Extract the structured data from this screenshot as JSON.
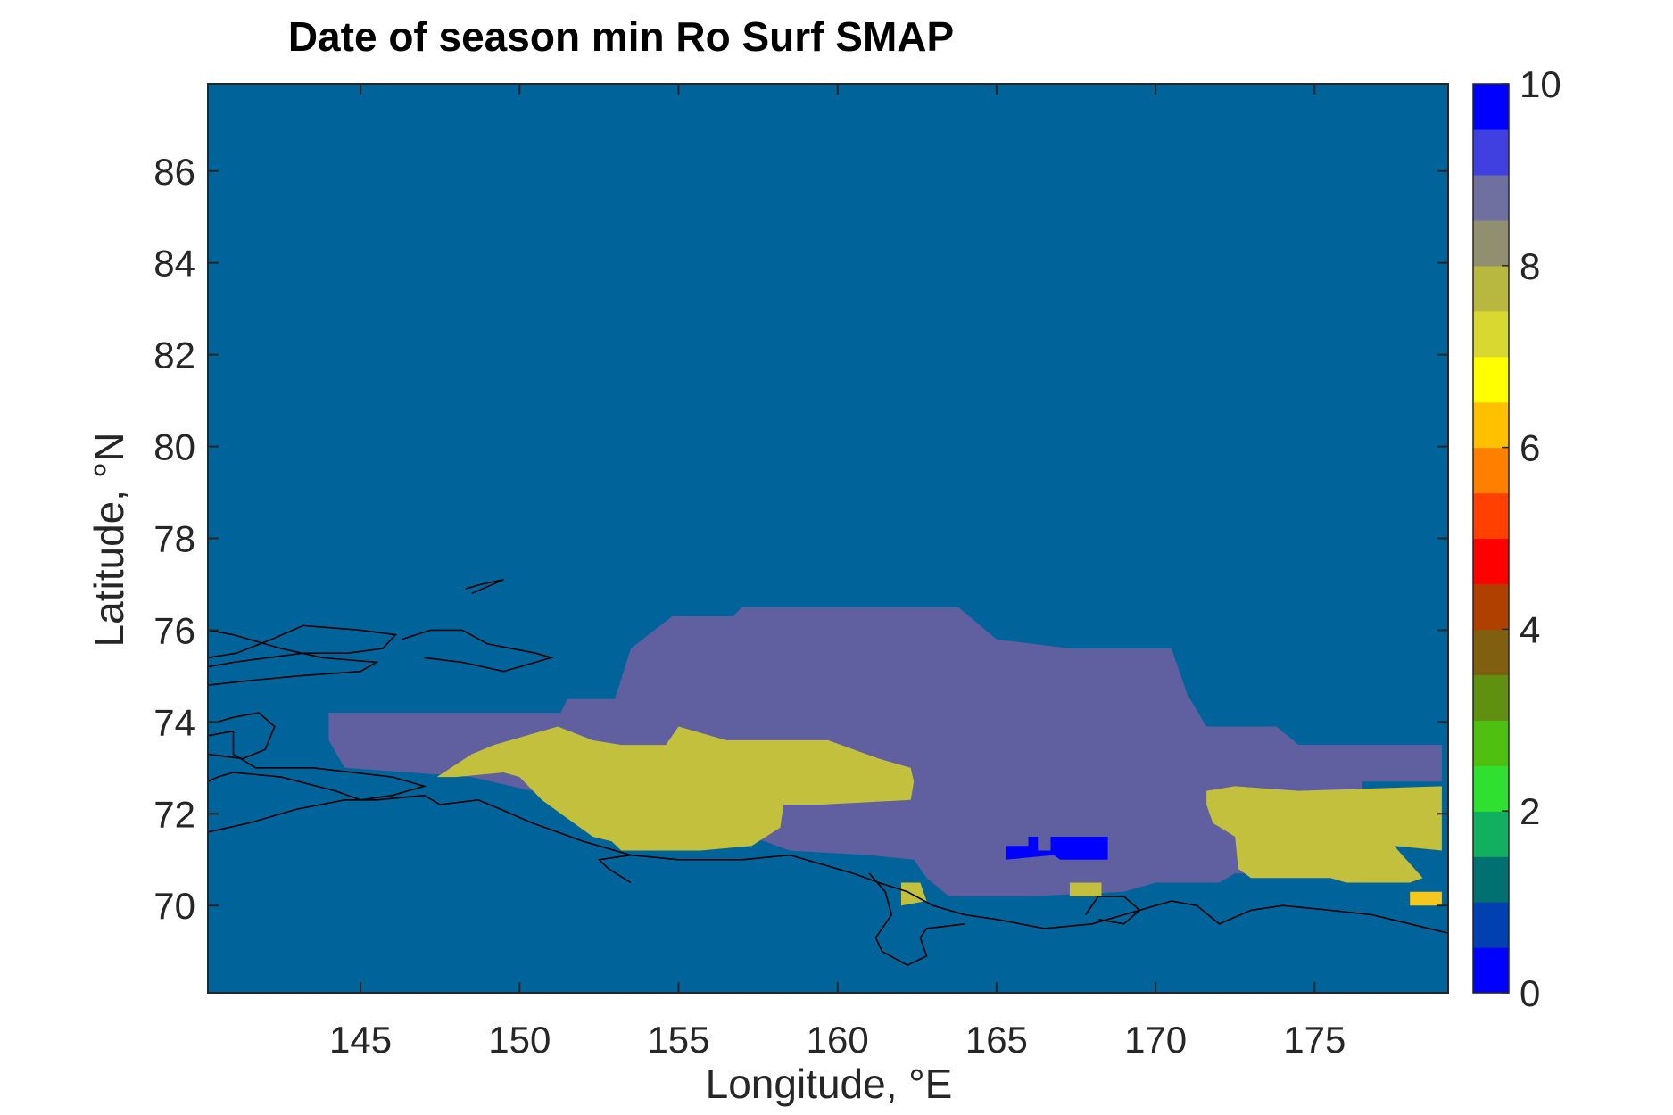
{
  "chart_data": {
    "type": "heatmap",
    "title": "Date of season min Ro Surf SMAP",
    "xlabel": "Longitude, °E",
    "ylabel": "Latitude, °N",
    "xlim": [
      140.2,
      179.2
    ],
    "ylim": [
      68.1,
      87.9
    ],
    "xticks": [
      145,
      150,
      155,
      160,
      165,
      170,
      175
    ],
    "yticks": [
      70,
      72,
      74,
      76,
      78,
      80,
      82,
      84,
      86
    ],
    "grid": false,
    "background_value": 1,
    "background_color": "#00649a",
    "colorbar": {
      "range": [
        0,
        10
      ],
      "ticks": [
        0,
        2,
        4,
        6,
        8,
        10
      ],
      "colors": [
        "#0000ff",
        "#0040b0",
        "#007070",
        "#10b060",
        "#30e030",
        "#50c010",
        "#609010",
        "#806010",
        "#b04000",
        "#ff0000",
        "#ff4000",
        "#ff8000",
        "#ffc000",
        "#ffff00",
        "#d8d830",
        "#b8b840",
        "#909070",
        "#7070a0",
        "#4040e0",
        "#0000ff"
      ]
    },
    "regions": [
      {
        "name": "",
        "value": 9,
        "color": "#605fa0",
        "polygon": [
          [
            144,
            74.2
          ],
          [
            151.3,
            74.2
          ],
          [
            151.5,
            74.5
          ],
          [
            153,
            74.5
          ],
          [
            153.5,
            75.6
          ],
          [
            154.8,
            76.3
          ],
          [
            156.7,
            76.3
          ],
          [
            157,
            76.5
          ],
          [
            163.8,
            76.5
          ],
          [
            165,
            75.8
          ],
          [
            167.3,
            75.6
          ],
          [
            170.5,
            75.6
          ],
          [
            171,
            74.6
          ],
          [
            171.6,
            73.9
          ],
          [
            173.8,
            73.9
          ],
          [
            174.5,
            73.5
          ],
          [
            179,
            73.5
          ],
          [
            179,
            72.7
          ],
          [
            176.5,
            72.7
          ],
          [
            176.5,
            72
          ],
          [
            176,
            71.6
          ],
          [
            176.2,
            70.8
          ],
          [
            175,
            70.7
          ],
          [
            172.5,
            70.7
          ],
          [
            172,
            70.5
          ],
          [
            170,
            70.5
          ],
          [
            169,
            70.3
          ],
          [
            166,
            70.2
          ],
          [
            163.5,
            70.2
          ],
          [
            162.8,
            70.6
          ],
          [
            162.4,
            71
          ],
          [
            161,
            71.1
          ],
          [
            158.5,
            71.2
          ],
          [
            157.3,
            71.5
          ],
          [
            152.8,
            71.5
          ],
          [
            152.4,
            72
          ],
          [
            151,
            72.4
          ],
          [
            148.5,
            72.8
          ],
          [
            144.5,
            73
          ],
          [
            144,
            73.6
          ]
        ]
      },
      {
        "name": "",
        "value": 8,
        "color": "#c2c03c",
        "polygon": [
          [
            147.4,
            72.8
          ],
          [
            148.5,
            73.3
          ],
          [
            149.2,
            73.5
          ],
          [
            151.2,
            73.9
          ],
          [
            152.3,
            73.6
          ],
          [
            153.2,
            73.5
          ],
          [
            154.6,
            73.5
          ],
          [
            155,
            73.9
          ],
          [
            156.5,
            73.6
          ],
          [
            159.7,
            73.6
          ],
          [
            161.3,
            73.2
          ],
          [
            162.3,
            73
          ],
          [
            162.4,
            72.7
          ],
          [
            162.3,
            72.3
          ],
          [
            159.5,
            72.2
          ],
          [
            158.3,
            72.2
          ],
          [
            158.2,
            71.7
          ],
          [
            157.3,
            71.3
          ],
          [
            155.7,
            71.2
          ],
          [
            153.2,
            71.2
          ],
          [
            152.9,
            71.4
          ],
          [
            152.3,
            71.5
          ],
          [
            151.3,
            72
          ],
          [
            150.7,
            72.3
          ],
          [
            150,
            72.8
          ],
          [
            149.5,
            72.9
          ],
          [
            148,
            72.8
          ]
        ]
      },
      {
        "name": "",
        "value": 8,
        "color": "#c2c03c",
        "polygon": [
          [
            171.6,
            72.5
          ],
          [
            172.5,
            72.6
          ],
          [
            174.5,
            72.5
          ],
          [
            179,
            72.6
          ],
          [
            179,
            71.2
          ],
          [
            177.5,
            71.3
          ],
          [
            178.4,
            70.6
          ],
          [
            178,
            70.5
          ],
          [
            176,
            70.5
          ],
          [
            175.5,
            70.6
          ],
          [
            173,
            70.6
          ],
          [
            172.6,
            70.8
          ],
          [
            172.5,
            71.5
          ],
          [
            171.8,
            71.8
          ],
          [
            171.6,
            72.2
          ]
        ]
      },
      {
        "name": "",
        "value": 8,
        "color": "#c2c03c",
        "polygon": [
          [
            162,
            70.5
          ],
          [
            162.6,
            70.5
          ],
          [
            162.8,
            70.1
          ],
          [
            162,
            70
          ]
        ]
      },
      {
        "name": "",
        "value": 8,
        "color": "#c2c03c",
        "polygon": [
          [
            167.3,
            70.5
          ],
          [
            168.3,
            70.5
          ],
          [
            168.3,
            70.2
          ],
          [
            167.3,
            70.2
          ]
        ]
      },
      {
        "name": "",
        "value": 7,
        "color": "#f4c81c",
        "polygon": [
          [
            178,
            70.3
          ],
          [
            179,
            70.3
          ],
          [
            179,
            70
          ],
          [
            178,
            70
          ]
        ]
      },
      {
        "name": "",
        "value": 0,
        "color": "#0000ff",
        "polygon": [
          [
            165.3,
            71.3
          ],
          [
            166,
            71.3
          ],
          [
            166,
            71.5
          ],
          [
            166.3,
            71.5
          ],
          [
            166.3,
            71.2
          ],
          [
            166.7,
            71.2
          ],
          [
            166.7,
            71.5
          ],
          [
            168.5,
            71.5
          ],
          [
            168.5,
            71
          ],
          [
            167,
            71
          ],
          [
            166.8,
            71.1
          ],
          [
            165.3,
            71
          ]
        ]
      }
    ],
    "coastlines": [
      [
        [
          140.2,
          74.8
        ],
        [
          141.5,
          74.9
        ],
        [
          143,
          75
        ],
        [
          145,
          75.1
        ],
        [
          145.5,
          75.3
        ],
        [
          143.8,
          75.4
        ],
        [
          142.5,
          75.6
        ],
        [
          141,
          75.9
        ],
        [
          140.2,
          76
        ]
      ],
      [
        [
          140.2,
          75.4
        ],
        [
          141.1,
          75.5
        ],
        [
          142.2,
          75.8
        ],
        [
          143.2,
          76.1
        ],
        [
          145,
          76
        ],
        [
          146.1,
          75.9
        ],
        [
          145.7,
          75.6
        ],
        [
          144.6,
          75.5
        ],
        [
          143.2,
          75.5
        ],
        [
          142.1,
          75.4
        ],
        [
          141,
          75.3
        ],
        [
          140.2,
          75.2
        ]
      ],
      [
        [
          146.3,
          75.8
        ],
        [
          147.2,
          76
        ],
        [
          148.2,
          76
        ],
        [
          149,
          75.7
        ],
        [
          150.5,
          75.5
        ],
        [
          151,
          75.4
        ],
        [
          150,
          75.2
        ],
        [
          149.5,
          75.1
        ],
        [
          148.2,
          75.3
        ],
        [
          147,
          75.4
        ]
      ],
      [
        [
          140.2,
          73.7
        ],
        [
          141,
          73.8
        ],
        [
          141,
          73.3
        ],
        [
          141.7,
          73
        ],
        [
          143.5,
          73
        ],
        [
          146,
          72.8
        ],
        [
          147,
          72.6
        ],
        [
          146,
          72.4
        ],
        [
          145,
          72.3
        ],
        [
          144.2,
          72.5
        ],
        [
          142.5,
          72.8
        ],
        [
          141,
          72.9
        ],
        [
          140.5,
          72.8
        ],
        [
          140.2,
          72.7
        ]
      ],
      [
        [
          140.2,
          71.6
        ],
        [
          141.5,
          71.8
        ],
        [
          143,
          72.1
        ],
        [
          144.5,
          72.3
        ],
        [
          145.5,
          72.3
        ],
        [
          147,
          72.4
        ],
        [
          147.5,
          72.2
        ],
        [
          148.7,
          72.3
        ],
        [
          149.4,
          72.1
        ],
        [
          150.4,
          71.8
        ],
        [
          151.2,
          71.6
        ],
        [
          152,
          71.4
        ],
        [
          153.5,
          71.1
        ],
        [
          155,
          71
        ],
        [
          157,
          71
        ],
        [
          158.5,
          71.1
        ],
        [
          159.5,
          70.9
        ],
        [
          160.5,
          70.7
        ],
        [
          161.3,
          70.5
        ],
        [
          162.2,
          70.3
        ],
        [
          163,
          70
        ],
        [
          164,
          69.8
        ],
        [
          165,
          69.7
        ],
        [
          166.5,
          69.5
        ],
        [
          168,
          69.6
        ],
        [
          169.5,
          69.9
        ],
        [
          170.5,
          70.1
        ],
        [
          171.3,
          70
        ],
        [
          172,
          69.6
        ],
        [
          173,
          69.9
        ],
        [
          174,
          70
        ],
        [
          175.5,
          69.9
        ],
        [
          176.8,
          69.8
        ],
        [
          178,
          69.6
        ],
        [
          179.2,
          69.4
        ]
      ],
      [
        [
          153.5,
          70.5
        ],
        [
          152.8,
          70.8
        ],
        [
          152.5,
          71
        ],
        [
          153.5,
          71.1
        ]
      ],
      [
        [
          161,
          70.7
        ],
        [
          161.5,
          70.3
        ],
        [
          161.7,
          69.8
        ],
        [
          161.2,
          69.3
        ],
        [
          161.4,
          69
        ],
        [
          162.2,
          68.7
        ],
        [
          162.8,
          68.9
        ],
        [
          162.6,
          69.3
        ],
        [
          162.8,
          69.5
        ],
        [
          164,
          69.6
        ]
      ],
      [
        [
          167.8,
          69.8
        ],
        [
          168.2,
          70.2
        ],
        [
          169,
          70.2
        ],
        [
          169.5,
          69.9
        ],
        [
          169,
          69.6
        ],
        [
          168.2,
          69.7
        ]
      ],
      [
        [
          140.2,
          73.3
        ],
        [
          141.3,
          73.2
        ],
        [
          142,
          73.4
        ],
        [
          142.3,
          73.9
        ],
        [
          141.8,
          74.2
        ],
        [
          141,
          74.1
        ],
        [
          140.5,
          74
        ]
      ],
      [
        [
          148.3,
          76.9
        ],
        [
          148.8,
          77
        ],
        [
          149.5,
          77.1
        ],
        [
          148.5,
          76.8
        ]
      ]
    ]
  }
}
